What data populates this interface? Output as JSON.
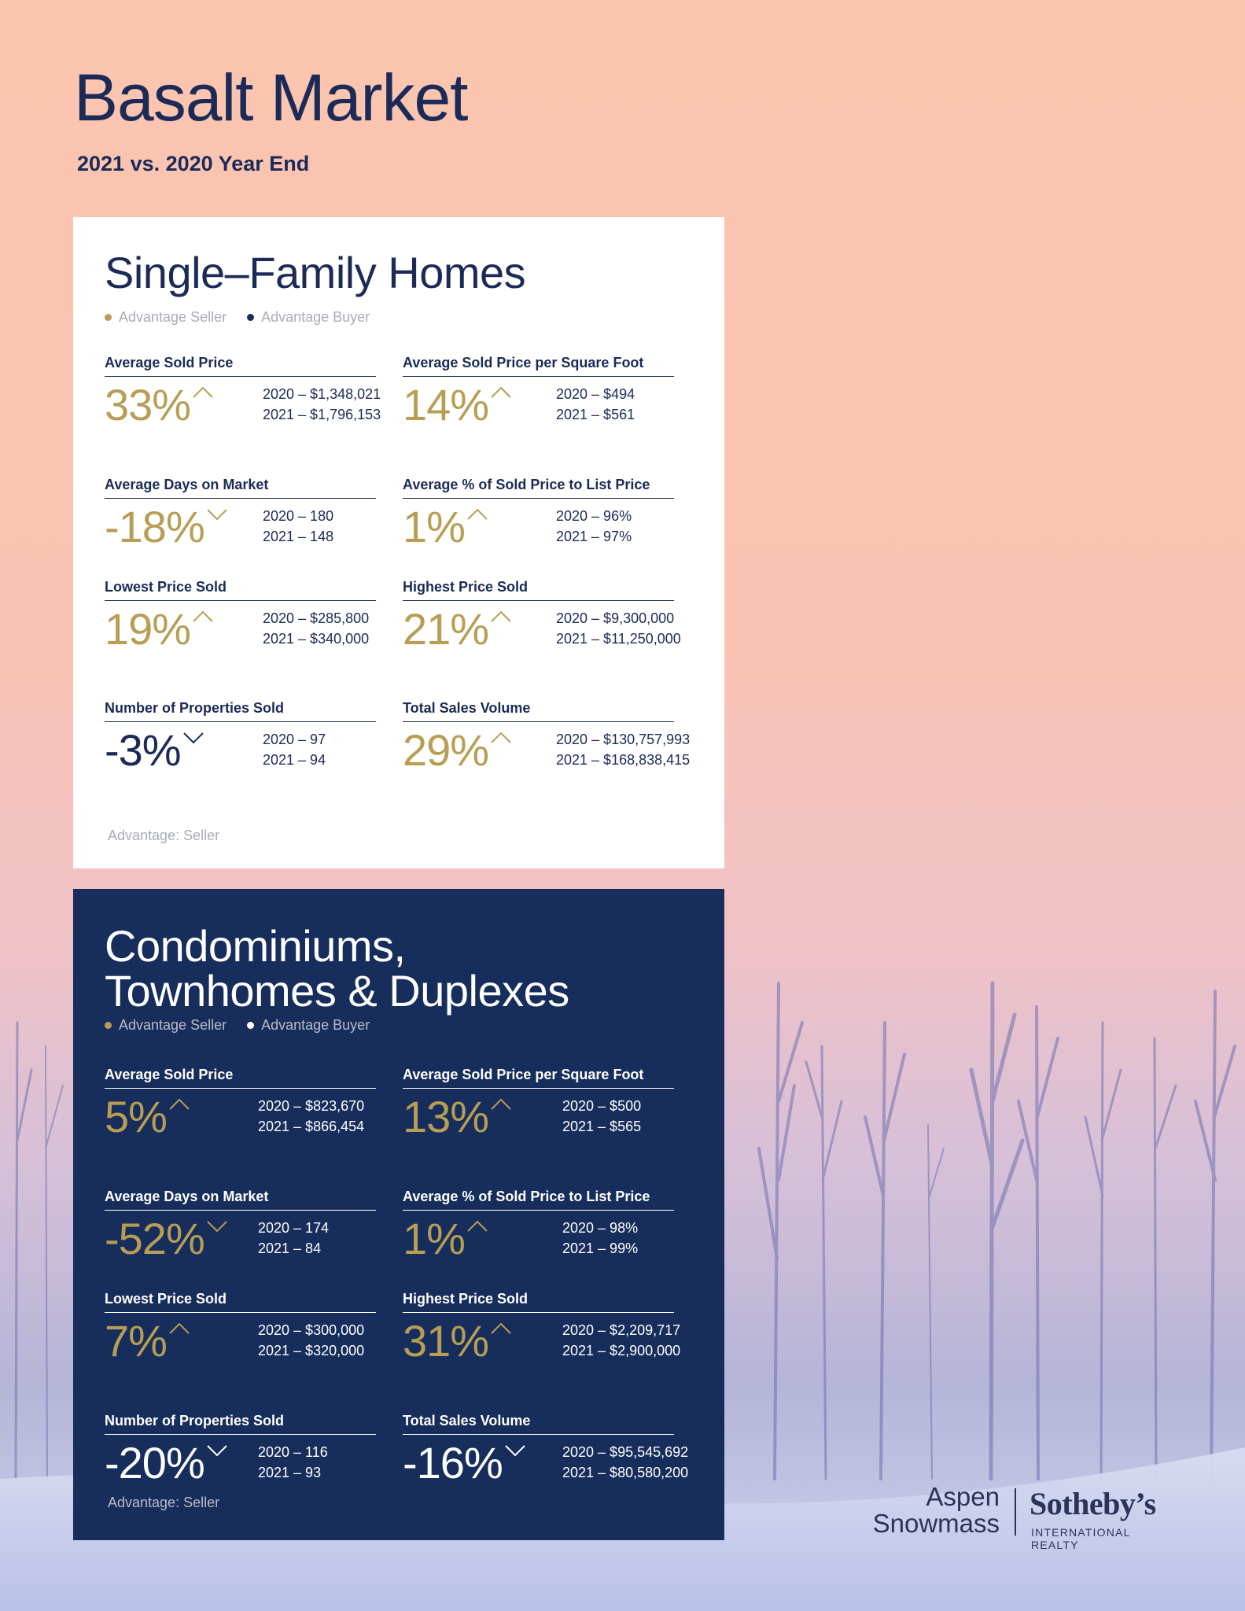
{
  "page": {
    "title": "Basalt Market",
    "subtitle": "2021 vs. 2020 Year End"
  },
  "legend": {
    "seller": "Advantage Seller",
    "buyer": "Advantage Buyer"
  },
  "single_family": {
    "title": "Single–Family Homes",
    "advantage": "Advantage: Seller",
    "metrics": [
      {
        "label": "Average Sold Price",
        "pct": "33%",
        "direction": "up",
        "y2020": "2020 – $1,348,021",
        "y2021": "2021 –  $1,796,153"
      },
      {
        "label": "Average Sold Price per Square Foot",
        "pct": "14%",
        "direction": "up",
        "y2020": "2020 – $494",
        "y2021": "2021 –  $561"
      },
      {
        "label": "Average Days on Market",
        "pct": "-18%",
        "direction": "down",
        "y2020": "2020 – 180",
        "y2021": "2021 –  148"
      },
      {
        "label": "Average % of Sold Price to List Price",
        "pct": "1%",
        "direction": "up",
        "y2020": "2020 – 96%",
        "y2021": "2021 –  97%"
      },
      {
        "label": "Lowest Price Sold",
        "pct": "19%",
        "direction": "up",
        "y2020": "2020 – $285,800",
        "y2021": "2021 –  $340,000"
      },
      {
        "label": "Highest Price Sold",
        "pct": "21%",
        "direction": "up",
        "y2020": "2020 – $9,300,000",
        "y2021": "2021 –  $11,250,000"
      },
      {
        "label": "Number of Properties Sold",
        "pct": "-3%",
        "direction": "down",
        "y2020": "2020 – 97",
        "y2021": "2021 –  94"
      },
      {
        "label": "Total Sales Volume",
        "pct": "29%",
        "direction": "up",
        "y2020": "2020 – $130,757,993",
        "y2021": "2021 –  $168,838,415"
      }
    ]
  },
  "condos": {
    "title_line1": "Condominiums,",
    "title_line2": "Townhomes & Duplexes",
    "advantage": "Advantage: Seller",
    "metrics": [
      {
        "label": "Average Sold Price",
        "pct": "5%",
        "direction": "up",
        "y2020": "2020 – $823,670",
        "y2021": "2021 –  $866,454"
      },
      {
        "label": "Average Sold Price per Square Foot",
        "pct": "13%",
        "direction": "up",
        "y2020": "2020 – $500",
        "y2021": "2021 –  $565"
      },
      {
        "label": "Average Days on Market",
        "pct": "-52%",
        "direction": "down",
        "y2020": "2020 – 174",
        "y2021": "2021 –  84"
      },
      {
        "label": "Average % of Sold Price to List Price",
        "pct": "1%",
        "direction": "up",
        "y2020": "2020 – 98%",
        "y2021": "2021 –  99%"
      },
      {
        "label": "Lowest Price Sold",
        "pct": "7%",
        "direction": "up",
        "y2020": "2020 – $300,000",
        "y2021": "2021 –  $320,000"
      },
      {
        "label": "Highest Price Sold",
        "pct": "31%",
        "direction": "up",
        "y2020": "2020 – $2,209,717",
        "y2021": "2021 –  $2,900,000"
      },
      {
        "label": "Number of Properties Sold",
        "pct": "-20%",
        "direction": "down",
        "y2020": "2020 – 116",
        "y2021": "2021 –  93"
      },
      {
        "label": "Total Sales Volume",
        "pct": "-16%",
        "direction": "down",
        "y2020": "2020 – $95,545,692",
        "y2021": "2021 –  $80,580,200"
      }
    ]
  },
  "logo": {
    "line1": "Aspen",
    "line2": "Snowmass",
    "brand": "Sotheby’s",
    "tagline": "INTERNATIONAL REALTY"
  }
}
